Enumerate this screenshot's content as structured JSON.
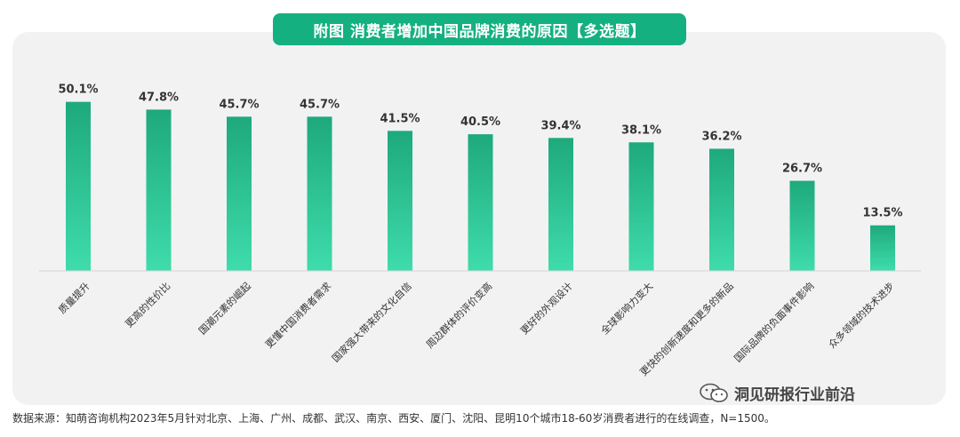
{
  "header": {
    "title": "附图 消费者增加中国品牌消费的原因【多选题】"
  },
  "footer": {
    "source": "数据来源：知萌咨询机构2023年5月针对北京、上海、广州、成都、武汉、南京、西安、厦门、沈阳、昆明10个城市18-60岁消费者进行的在线调查，N=1500。"
  },
  "watermark": {
    "brand": "洞见研报行业前沿",
    "icon": "wechat-icon"
  },
  "colors": {
    "bar_top": "#1ea97c",
    "bar_bottom": "#3fdcab",
    "title_bg": "#15b07f",
    "panel_bg": "#f2f2f2"
  },
  "chart_data": {
    "type": "bar",
    "title": "附图 消费者增加中国品牌消费的原因【多选题】",
    "categories": [
      "质量提升",
      "更高的性价比",
      "国潮元素的崛起",
      "更懂中国消费者需求",
      "国家强大带来的文化自信",
      "周边群体的评价变高",
      "更好的外观设计",
      "全球影响力变大",
      "更快的创新速度和更多的新品",
      "国际品牌的负面事件影响",
      "众多领域的技术进步"
    ],
    "values": [
      50.1,
      47.8,
      45.7,
      45.7,
      41.5,
      40.5,
      39.4,
      38.1,
      36.2,
      26.7,
      13.5
    ],
    "value_labels": [
      "50.1%",
      "47.8%",
      "45.7%",
      "45.7%",
      "41.5%",
      "40.5%",
      "39.4%",
      "38.1%",
      "36.2%",
      "26.7%",
      "13.5%"
    ],
    "ylim": [
      0,
      55
    ],
    "grid": false,
    "legend": "none"
  }
}
